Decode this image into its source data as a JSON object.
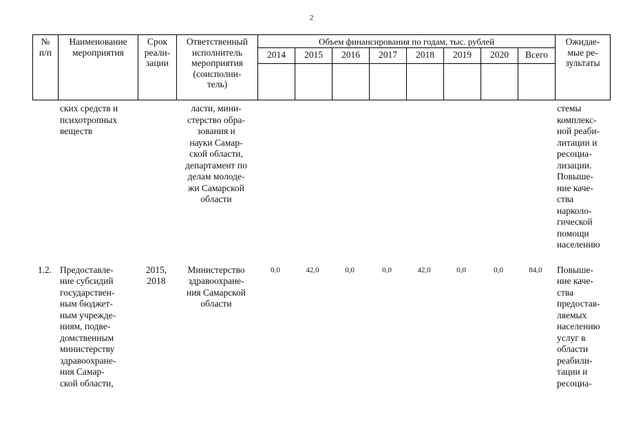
{
  "page": {
    "number": "2"
  },
  "table": {
    "header": {
      "col_num": "№\nп/п",
      "col_name": "Наименование\nмероприятия",
      "col_term": "Срок\nреали-\nзации",
      "col_executor": "Ответственный\nисполнитель\nмероприятия\n(соисполни-\nтель)",
      "financing_title": "Объем финансирования по годам, тыс. рублей",
      "years": [
        "2014",
        "2015",
        "2016",
        "2017",
        "2018",
        "2019",
        "2020",
        "Всего"
      ],
      "col_results": "Ожидае-\nмые ре-\nзультаты"
    },
    "rows": [
      {
        "num": "",
        "name": "ских средств и\nпсихотропных\nвеществ",
        "term": "",
        "executor": "ласти, мини-\nстерство обра-\nзования и\nнауки Самар-\nской области,\nдепартамент по\nделам молоде-\nжи Самарской\nобласти",
        "values": [
          "",
          "",
          "",
          "",
          "",
          "",
          "",
          ""
        ],
        "results": "стемы\nкомплекс-\nной реаби-\nлитации и\nресоциа-\nлизации.\nПовыше-\nние каче-\nства\nнарколо-\nгической\nпомощи\nнаселению"
      },
      {
        "num": "1.2.",
        "name": "Предоставле-\nние субсидий\nгосударствен-\nным бюджет-\nным учрежде-\nниям, подве-\nдомственным\nминистерству\nздравоохране-\nния Самар-\nской области,",
        "term": "2015,\n2018",
        "executor": "Министерство\nздравоохране-\nния Самарской\nобласти",
        "values": [
          "0,0",
          "42,0",
          "0,0",
          "0,0",
          "42,0",
          "0,0",
          "0,0",
          "84,0"
        ],
        "results": "Повыше-\nние каче-\nства\nпредостав-\nляемых\nнаселению\nуслуг в\nобласти\nреабили-\nтации и\nресоциа-"
      }
    ]
  }
}
